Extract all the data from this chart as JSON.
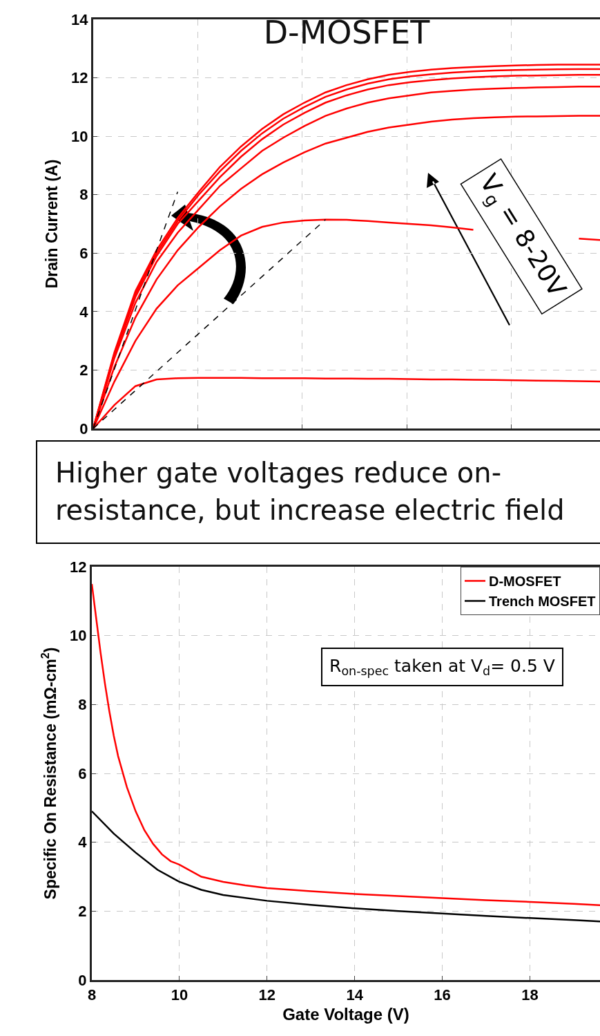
{
  "chart_data": [
    {
      "type": "line",
      "title": "D-MOSFET",
      "ylabel": "Drain Current (A)",
      "tick_labels": "y",
      "grid": true,
      "ylim": [
        0,
        14
      ],
      "yticks": [
        0,
        2,
        4,
        6,
        8,
        10,
        12,
        14
      ],
      "categories": [
        null,
        null,
        null,
        null,
        null,
        null,
        null,
        null,
        null,
        null,
        null,
        null,
        null,
        null,
        null,
        null,
        null,
        null,
        null,
        null,
        null,
        null,
        null,
        null,
        null
      ],
      "series": [
        {
          "color": "#ff0000",
          "values": [
            0,
            0.8,
            1.45,
            1.68,
            1.72,
            1.73,
            1.73,
            1.73,
            1.72,
            1.72,
            1.72,
            1.71,
            1.71,
            1.7,
            1.7,
            1.69,
            1.68,
            1.68,
            1.67,
            1.66,
            1.65,
            1.64,
            1.63,
            1.62,
            1.61
          ]
        },
        {
          "color": "#ff0000",
          "values": [
            0,
            1.6,
            3.0,
            4.1,
            4.9,
            5.5,
            6.1,
            6.6,
            6.9,
            7.05,
            7.12,
            7.15,
            7.14,
            7.1,
            7.05,
            7.0,
            6.95,
            6.88,
            6.8,
            null,
            null,
            null,
            null,
            6.5,
            6.45
          ]
        },
        {
          "color": "#ff0000",
          "values": [
            0,
            2.1,
            3.8,
            5.1,
            6.1,
            6.9,
            7.6,
            8.2,
            8.7,
            9.1,
            9.45,
            9.75,
            9.95,
            10.15,
            10.3,
            10.4,
            10.5,
            10.57,
            10.62,
            10.65,
            10.67,
            10.68,
            10.69,
            10.7,
            10.7
          ]
        },
        {
          "color": "#ff0000",
          "values": [
            0,
            2.4,
            4.3,
            5.7,
            6.7,
            7.5,
            8.3,
            8.9,
            9.5,
            9.95,
            10.35,
            10.7,
            10.95,
            11.15,
            11.3,
            11.4,
            11.5,
            11.55,
            11.6,
            11.63,
            11.65,
            11.67,
            11.68,
            11.7,
            11.7
          ]
        },
        {
          "color": "#ff0000",
          "values": [
            0,
            2.5,
            4.5,
            5.9,
            7.0,
            7.8,
            8.6,
            9.3,
            9.9,
            10.4,
            10.8,
            11.15,
            11.4,
            11.6,
            11.75,
            11.85,
            11.92,
            11.98,
            12.02,
            12.05,
            12.07,
            12.08,
            12.09,
            12.1,
            12.1
          ]
        },
        {
          "color": "#ff0000",
          "values": [
            0,
            2.55,
            4.6,
            6.0,
            7.1,
            8.0,
            8.8,
            9.5,
            10.1,
            10.6,
            11.0,
            11.35,
            11.6,
            11.8,
            11.95,
            12.05,
            12.12,
            12.18,
            12.22,
            12.25,
            12.27,
            12.28,
            12.29,
            12.3,
            12.3
          ]
        },
        {
          "color": "#ff0000",
          "values": [
            0,
            2.6,
            4.7,
            6.1,
            7.2,
            8.1,
            8.95,
            9.65,
            10.25,
            10.75,
            11.15,
            11.5,
            11.75,
            11.95,
            12.1,
            12.2,
            12.28,
            12.33,
            12.37,
            12.4,
            12.42,
            12.44,
            12.45,
            12.45,
            12.45
          ]
        },
        {
          "color": "#000000",
          "line_style": "dashed",
          "values": [
            0,
            2.03,
            4.06,
            6.1,
            8.1,
            null,
            null,
            null,
            null,
            null,
            null,
            null,
            null,
            null,
            null,
            null,
            null,
            null,
            null,
            null,
            null,
            null,
            null,
            null,
            null
          ]
        },
        {
          "color": "#000000",
          "line_style": "dashed",
          "values": [
            0,
            0.65,
            1.3,
            1.95,
            2.6,
            3.25,
            3.9,
            4.55,
            5.2,
            5.85,
            6.5,
            7.15,
            null,
            null,
            null,
            null,
            null,
            null,
            null,
            null,
            null,
            null,
            null,
            null,
            null
          ]
        }
      ],
      "annotations": [
        "V$_{g}$ = 8-20V",
        "Higher gate voltages reduce on-resistance, but increase electric field"
      ]
    },
    {
      "type": "line",
      "xlabel": "Gate Voltage (V)",
      "ylabel": "Specific On Resistance (mΩ-cm$^{2}$)",
      "grid": true,
      "legend": "top right",
      "xlim": [
        8,
        19.6
      ],
      "xticks": [
        8,
        10,
        12,
        14,
        16,
        18
      ],
      "ylim": [
        0,
        12
      ],
      "yticks": [
        0,
        2,
        4,
        6,
        8,
        10,
        12
      ],
      "series": [
        {
          "name": "D-MOSFET",
          "color": "#ff0000",
          "x": [
            8,
            8.1,
            8.2,
            8.3,
            8.4,
            8.5,
            8.6,
            8.8,
            9.0,
            9.2,
            9.4,
            9.6,
            9.8,
            10,
            10.5,
            11,
            11.5,
            12,
            13,
            14,
            15,
            16,
            17,
            18,
            19,
            19.6
          ],
          "values": [
            11.5,
            10.5,
            9.5,
            8.6,
            7.8,
            7.1,
            6.5,
            5.6,
            4.9,
            4.35,
            3.95,
            3.65,
            3.45,
            3.35,
            3.0,
            2.85,
            2.75,
            2.67,
            2.58,
            2.5,
            2.44,
            2.38,
            2.32,
            2.27,
            2.21,
            2.17
          ]
        },
        {
          "name": "Trench MOSFET",
          "color": "#000000",
          "x": [
            8,
            8.5,
            9,
            9.5,
            10,
            10.5,
            11,
            12,
            13,
            14,
            15,
            16,
            17,
            18,
            19,
            19.6
          ],
          "values": [
            4.9,
            4.25,
            3.7,
            3.2,
            2.85,
            2.62,
            2.47,
            2.3,
            2.18,
            2.08,
            2.0,
            1.93,
            1.86,
            1.8,
            1.74,
            1.7
          ]
        }
      ],
      "annotations": [
        "R$_{on-spec}$ taken at V$_{d}$= 0.5 V"
      ]
    }
  ]
}
